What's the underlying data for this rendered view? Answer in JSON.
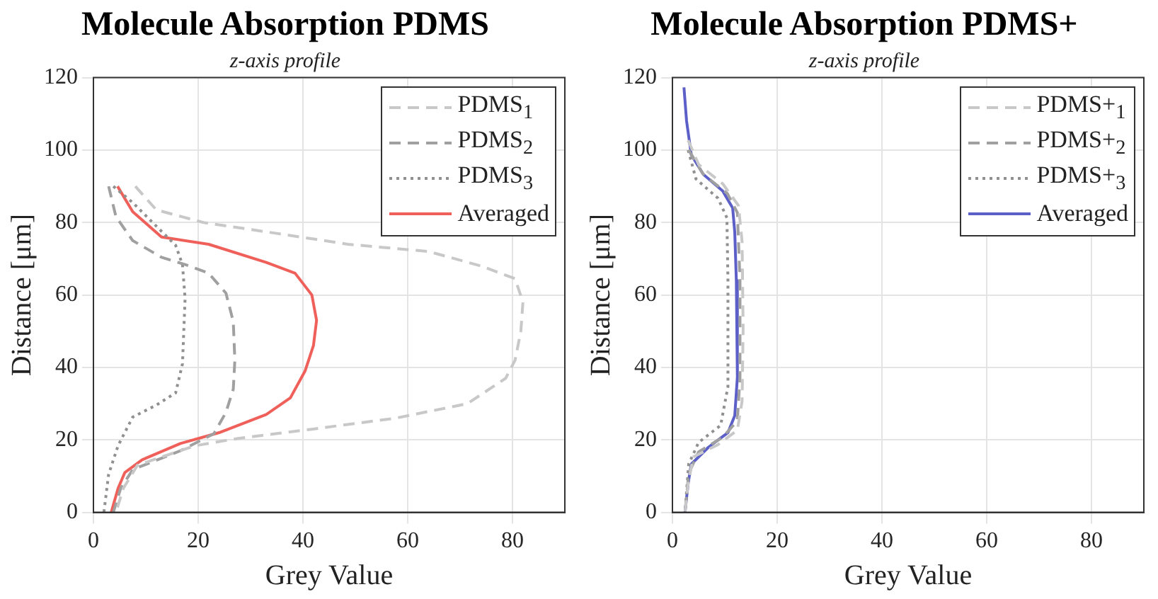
{
  "chart_data": [
    {
      "type": "line",
      "title": "Molecule Absorption PDMS",
      "subtitle": "z-axis profile",
      "xlabel": "Grey Value",
      "ylabel": "Distance [μm]",
      "xlim": [
        0,
        90
      ],
      "xticks": [
        0,
        20,
        40,
        60,
        80
      ],
      "ylim": [
        0,
        120
      ],
      "yticks": [
        0,
        20,
        40,
        60,
        80,
        100,
        120
      ],
      "grid": true,
      "legend": "top right",
      "marker": "none",
      "series": [
        {
          "name": "PDMS$_{1}$",
          "color": "#c8c8c8",
          "line_style": "dashed",
          "x": [
            8,
            12,
            21,
            35,
            48.6,
            64,
            74,
            80.5,
            82,
            81.6,
            80.5,
            78.7,
            71.4,
            57.7,
            42,
            27.6,
            19.4,
            8.4,
            5.7,
            4.3
          ],
          "values": [
            90,
            83.5,
            80,
            77,
            74,
            72,
            68,
            64.5,
            58,
            50,
            42,
            37,
            30,
            26,
            23,
            20.4,
            18.4,
            13,
            6.6,
            0
          ]
        },
        {
          "name": "PDMS$_{2}$",
          "color": "#a0a0a0",
          "line_style": "dashed",
          "x": [
            2.9,
            4.3,
            7.5,
            13,
            17.5,
            22,
            25.3,
            26.7,
            27,
            26.7,
            25.3,
            23,
            16.6,
            7.5,
            5.2,
            3.8
          ],
          "values": [
            90,
            81.6,
            75,
            70.4,
            68.4,
            66,
            60.5,
            52.6,
            42,
            34,
            27.6,
            21.7,
            17,
            11.8,
            6.6,
            0
          ]
        },
        {
          "name": "PDMS$_{3}$",
          "color": "#909090",
          "line_style": "dotted",
          "x": [
            3.8,
            7.5,
            12,
            15.7,
            17,
            17.5,
            17,
            15.7,
            12,
            7.5,
            4.7,
            2.9,
            2
          ],
          "values": [
            90,
            85.5,
            79,
            73.7,
            68.4,
            59,
            41,
            33,
            29.6,
            26.3,
            18.4,
            10.5,
            0
          ]
        },
        {
          "name": "Averaged",
          "color": "#f0605a",
          "line_style": "solid",
          "x": [
            4.6,
            7.5,
            13,
            22,
            33,
            38.5,
            41.7,
            42.6,
            42,
            40.4,
            37.6,
            33,
            24,
            16.6,
            9.3,
            6,
            4.7,
            3.4
          ],
          "values": [
            90,
            83,
            76,
            74,
            69,
            66,
            60,
            53,
            46,
            39,
            31.6,
            27,
            22,
            19,
            14.5,
            11,
            6.6,
            0
          ]
        }
      ]
    },
    {
      "type": "line",
      "title": "Molecule Absorption PDMS+",
      "subtitle": "z-axis profile",
      "xlabel": "Grey Value",
      "ylabel": "Distance [μm]",
      "xlim": [
        0,
        90
      ],
      "xticks": [
        0,
        20,
        40,
        60,
        80
      ],
      "ylim": [
        0,
        120
      ],
      "yticks": [
        0,
        20,
        40,
        60,
        80,
        100,
        120
      ],
      "grid": true,
      "legend": "top right",
      "marker": "none",
      "series": [
        {
          "name": "PDMS+$_{1}$",
          "color": "#c8c8c8",
          "line_style": "dashed",
          "x": [
            3,
            5,
            9.6,
            12.6,
            13.3,
            13.5,
            13.3,
            12.4,
            8.7,
            4,
            3,
            2.4
          ],
          "values": [
            102.7,
            96,
            90.7,
            84.7,
            74.7,
            50.7,
            30.7,
            22.7,
            18.7,
            15.3,
            8,
            0
          ]
        },
        {
          "name": "PDMS+$_{2}$",
          "color": "#a0a0a0",
          "line_style": "dashed",
          "x": [
            3.1,
            5.9,
            10.5,
            12.4,
            12.9,
            12.9,
            12.4,
            9.6,
            5,
            3.1,
            2.4
          ],
          "values": [
            100,
            93.3,
            88,
            82.7,
            64,
            37.3,
            25.3,
            20.7,
            16.7,
            10.7,
            0
          ]
        },
        {
          "name": "PDMS+$_{3}$",
          "color": "#909090",
          "line_style": "dotted",
          "x": [
            3,
            4.5,
            8.7,
            10.4,
            10.6,
            10.6,
            9.2,
            5,
            3.1,
            2.4
          ],
          "values": [
            100,
            92,
            86.7,
            81.3,
            64,
            34.7,
            24,
            19.3,
            13.3,
            0
          ]
        },
        {
          "name": "Averaged",
          "color": "#5b5fc7",
          "line_style": "solid",
          "x": [
            2.2,
            2.7,
            3.6,
            5.9,
            9.6,
            11.5,
            11.9,
            12.2,
            12.4,
            11.9,
            10.6,
            6.9,
            3.6,
            3,
            2.4
          ],
          "values": [
            117.3,
            108,
            98.7,
            93.3,
            88.7,
            84,
            77.3,
            64,
            37.3,
            26.7,
            22,
            18,
            13.3,
            8,
            0
          ]
        }
      ]
    }
  ]
}
